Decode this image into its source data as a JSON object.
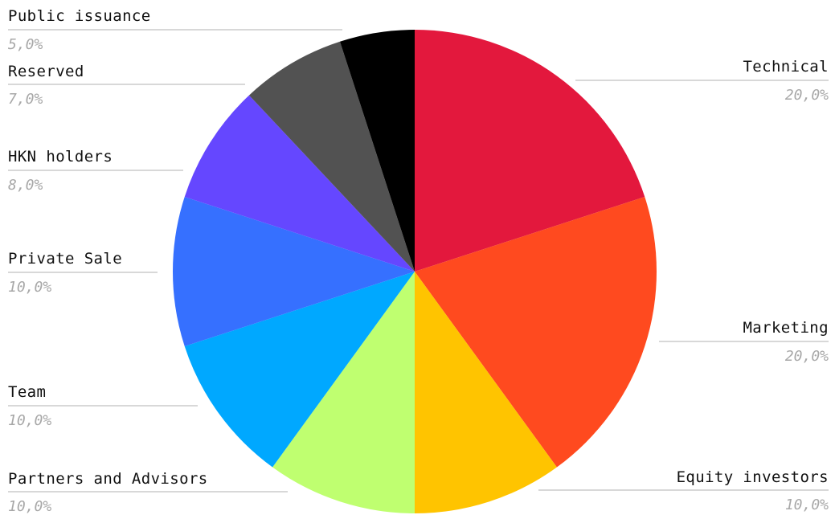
{
  "chart_data": {
    "type": "pie",
    "slices": [
      {
        "label": "Technical",
        "value": 20.0,
        "value_label": "20,0%",
        "color": "#e3183d"
      },
      {
        "label": "Marketing",
        "value": 20.0,
        "value_label": "20,0%",
        "color": "#ff4a1f"
      },
      {
        "label": "Equity investors",
        "value": 10.0,
        "value_label": "10,0%",
        "color": "#ffc400"
      },
      {
        "label": "Partners and Advisors",
        "value": 10.0,
        "value_label": "10,0%",
        "color": "#bfff70"
      },
      {
        "label": "Team",
        "value": 10.0,
        "value_label": "10,0%",
        "color": "#00a8ff"
      },
      {
        "label": "Private Sale",
        "value": 10.0,
        "value_label": "10,0%",
        "color": "#3670ff"
      },
      {
        "label": "HKN holders",
        "value": 8.0,
        "value_label": "8,0%",
        "color": "#6547ff"
      },
      {
        "label": "Reserved",
        "value": 7.0,
        "value_label": "7,0%",
        "color": "#525252"
      },
      {
        "label": "Public issuance",
        "value": 5.0,
        "value_label": "5,0%",
        "color": "#000000"
      }
    ],
    "start": "12 o'clock",
    "direction": "clockwise",
    "label_style": "outside labels with leader lines, name above percentage"
  }
}
